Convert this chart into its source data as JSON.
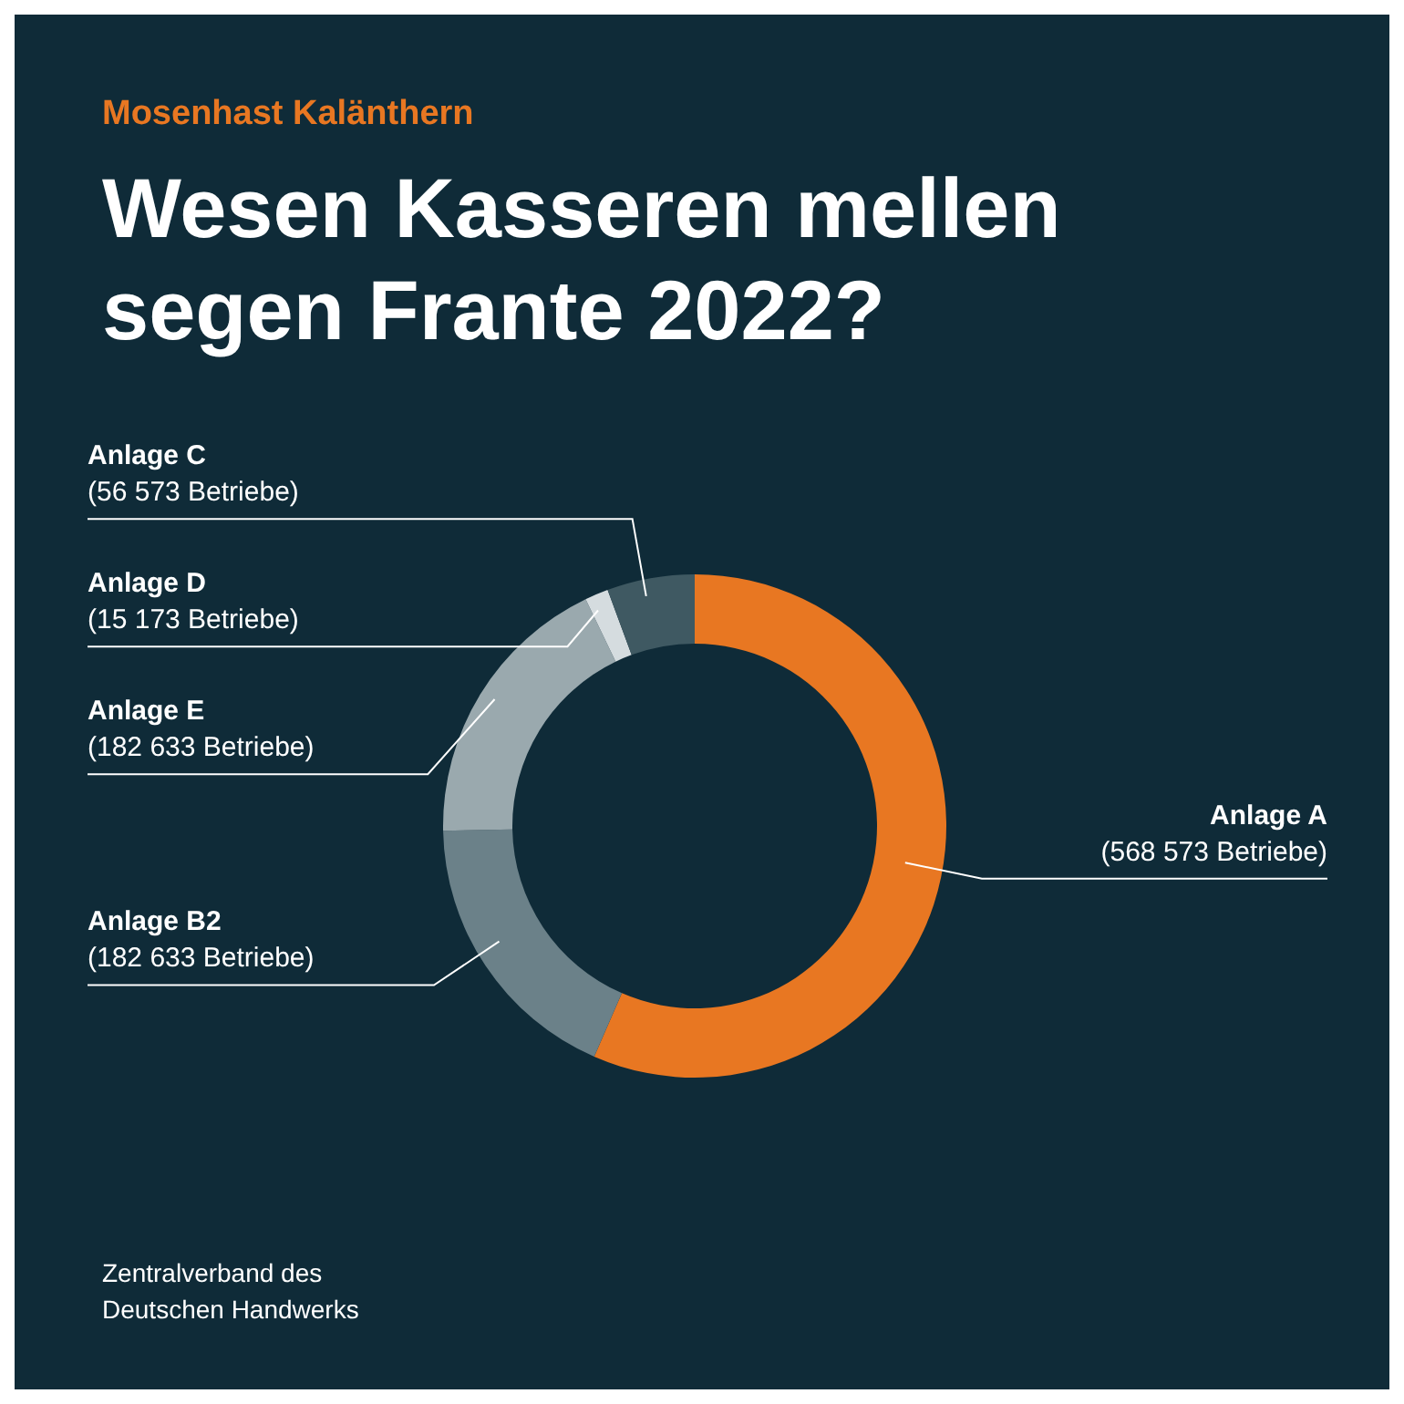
{
  "chart_data": {
    "type": "donut",
    "subtitle": "Mosenhast Kalänthern",
    "title": "Wesen Kasseren mellen segen Frante 2022?",
    "categories": [
      "Anlage A",
      "Anlage B2",
      "Anlage E",
      "Anlage D",
      "Anlage C"
    ],
    "values": [
      568573,
      182633,
      182633,
      15173,
      56573
    ],
    "value_labels": [
      "(568 573 Betriebe)",
      "(182 633 Betriebe)",
      "(182 633 Betriebe)",
      "(15 173 Betriebe)",
      "(56 573 Betriebe)"
    ],
    "colors": [
      "#e87722",
      "#6b8189",
      "#9aa9ae",
      "#d5dcdf",
      "#3f5962"
    ],
    "annotations": [
      "Zentralverband des Deutschen Handwerks"
    ]
  }
}
